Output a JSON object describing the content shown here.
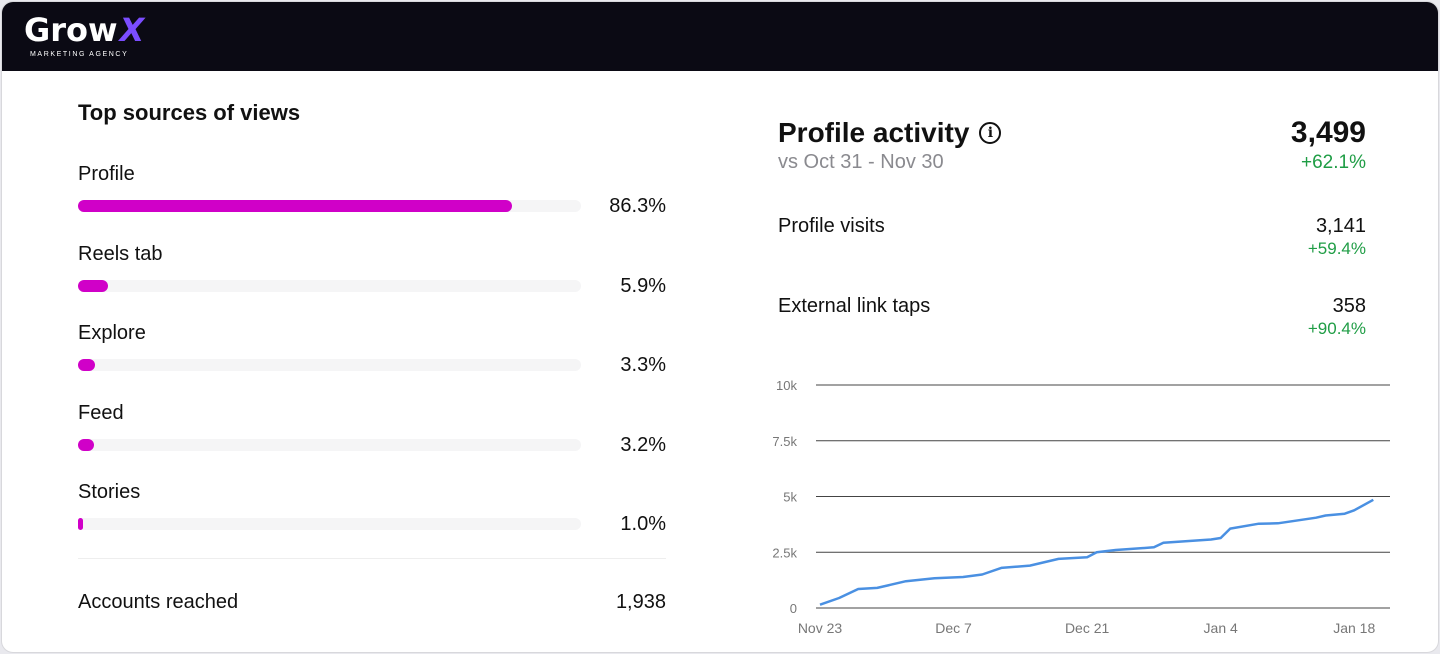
{
  "brand": {
    "name": "Grow",
    "mark": "X",
    "tagline": "MARKETING AGENCY",
    "accent": "#7b4dff"
  },
  "sources": {
    "title": "Top sources of views",
    "bar_color": "#d000c8",
    "items": [
      {
        "label": "Profile",
        "percent": 86.3,
        "display": "86.3%"
      },
      {
        "label": "Reels tab",
        "percent": 5.9,
        "display": "5.9%"
      },
      {
        "label": "Explore",
        "percent": 3.3,
        "display": "3.3%"
      },
      {
        "label": "Feed",
        "percent": 3.2,
        "display": "3.2%"
      },
      {
        "label": "Stories",
        "percent": 1.0,
        "display": "1.0%"
      }
    ],
    "accounts_reached_label": "Accounts reached",
    "accounts_reached_value": "1,938"
  },
  "activity": {
    "title": "Profile activity",
    "info_icon": "info-circle-icon",
    "comparison": "vs Oct 31 - Nov 30",
    "total": "3,499",
    "total_change": "+62.1%",
    "metrics": [
      {
        "label": "Profile visits",
        "value": "3,141",
        "change": "+59.4%"
      },
      {
        "label": "External link taps",
        "value": "358",
        "change": "+90.4%"
      }
    ],
    "positive_color": "#1f9d45"
  },
  "chart_data": {
    "type": "line",
    "line_color": "#4a90e2",
    "grid": true,
    "ylim": [
      0,
      10000
    ],
    "yticks": [
      0,
      2500,
      5000,
      7500,
      10000
    ],
    "ytick_labels": [
      "0",
      "2.5k",
      "5k",
      "7.5k",
      "10k"
    ],
    "xtick_labels": [
      "Nov 23",
      "Dec 7",
      "Dec 21",
      "Jan 4",
      "Jan 18"
    ],
    "x": [
      "Nov 23",
      "Nov 25",
      "Nov 27",
      "Nov 29",
      "Dec 2",
      "Dec 5",
      "Dec 8",
      "Dec 10",
      "Dec 12",
      "Dec 15",
      "Dec 18",
      "Dec 21",
      "Dec 22",
      "Dec 24",
      "Dec 28",
      "Dec 29",
      "Jan 3",
      "Jan 4",
      "Jan 5",
      "Jan 8",
      "Jan 10",
      "Jan 14",
      "Jan 15",
      "Jan 17",
      "Jan 18",
      "Jan 20"
    ],
    "y": [
      150,
      450,
      850,
      900,
      1200,
      1330,
      1390,
      1500,
      1800,
      1900,
      2200,
      2280,
      2500,
      2600,
      2720,
      2930,
      3070,
      3140,
      3560,
      3780,
      3800,
      4050,
      4150,
      4230,
      4380,
      4850
    ]
  }
}
